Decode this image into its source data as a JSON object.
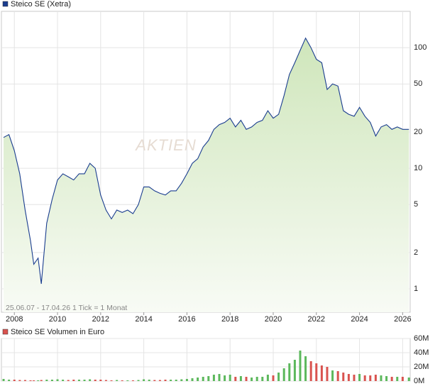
{
  "chart_data": [
    {
      "type": "line",
      "legend": "Steico SE (Xetra)",
      "log_scale": true,
      "grid": true,
      "annotation": "25.06.07 - 17.04.26   1 Tick = 1 Monat",
      "watermark": "AKTIEN",
      "x": [
        2007.5,
        2007.75,
        2008.0,
        2008.25,
        2008.5,
        2008.75,
        2008.9,
        2009.1,
        2009.25,
        2009.5,
        2009.75,
        2010.0,
        2010.25,
        2010.5,
        2010.75,
        2011.0,
        2011.25,
        2011.5,
        2011.75,
        2012.0,
        2012.25,
        2012.5,
        2012.75,
        2013.0,
        2013.25,
        2013.5,
        2013.75,
        2014.0,
        2014.25,
        2014.5,
        2014.75,
        2015.0,
        2015.25,
        2015.5,
        2015.75,
        2016.0,
        2016.25,
        2016.5,
        2016.75,
        2017.0,
        2017.25,
        2017.5,
        2017.75,
        2018.0,
        2018.25,
        2018.5,
        2018.75,
        2019.0,
        2019.25,
        2019.5,
        2019.75,
        2020.0,
        2020.25,
        2020.5,
        2020.75,
        2021.0,
        2021.25,
        2021.5,
        2021.75,
        2022.0,
        2022.25,
        2022.5,
        2022.75,
        2023.0,
        2023.25,
        2023.5,
        2023.75,
        2024.0,
        2024.25,
        2024.5,
        2024.75,
        2025.0,
        2025.25,
        2025.5,
        2025.75,
        2026.0,
        2026.29
      ],
      "series": [
        {
          "name": "Steico SE (Xetra)",
          "color": "#1a3d8f",
          "values": [
            18,
            19,
            14,
            9,
            4.5,
            2.5,
            1.6,
            1.8,
            1.1,
            3.5,
            5.5,
            8,
            9,
            8.5,
            8,
            9,
            9,
            11,
            10,
            6,
            4.5,
            3.8,
            4.5,
            4.3,
            4.5,
            4.2,
            5,
            7,
            7,
            6.5,
            6.2,
            6,
            6.5,
            6.5,
            7.5,
            9,
            11,
            12,
            15,
            17,
            21,
            23,
            24,
            26,
            22,
            25,
            21,
            22,
            24,
            25,
            30,
            26,
            28,
            40,
            60,
            75,
            95,
            120,
            100,
            80,
            75,
            45,
            50,
            48,
            30,
            28,
            27,
            32,
            27,
            24,
            18.5,
            22,
            23,
            21,
            22,
            21,
            21
          ]
        }
      ],
      "fill_color": "#d7ebc6",
      "xlim": [
        2007.4,
        2026.35
      ],
      "xticks": [
        2008,
        2010,
        2012,
        2014,
        2016,
        2018,
        2020,
        2022,
        2024,
        2026
      ],
      "ylim": [
        0.64,
        200
      ],
      "yticks": [
        1,
        2,
        5,
        10,
        20,
        50,
        100
      ]
    },
    {
      "type": "bar",
      "legend": "Steico SE Volumen in Euro",
      "grid": true,
      "up_color": "#5cb85c",
      "down_color": "#d9534f",
      "legend_color": "#d9534f",
      "x": [
        2007.5,
        2007.75,
        2008.0,
        2008.25,
        2008.5,
        2008.75,
        2008.9,
        2009.1,
        2009.25,
        2009.5,
        2009.75,
        2010.0,
        2010.25,
        2010.5,
        2010.75,
        2011.0,
        2011.25,
        2011.5,
        2011.75,
        2012.0,
        2012.25,
        2012.5,
        2012.75,
        2013.0,
        2013.25,
        2013.5,
        2013.75,
        2014.0,
        2014.25,
        2014.5,
        2014.75,
        2015.0,
        2015.25,
        2015.5,
        2015.75,
        2016.0,
        2016.25,
        2016.5,
        2016.75,
        2017.0,
        2017.25,
        2017.5,
        2017.75,
        2018.0,
        2018.25,
        2018.5,
        2018.75,
        2019.0,
        2019.25,
        2019.5,
        2019.75,
        2020.0,
        2020.25,
        2020.5,
        2020.75,
        2021.0,
        2021.25,
        2021.5,
        2021.75,
        2022.0,
        2022.25,
        2022.5,
        2022.75,
        2023.0,
        2023.25,
        2023.5,
        2023.75,
        2024.0,
        2024.25,
        2024.5,
        2024.75,
        2025.0,
        2025.25,
        2025.5,
        2025.75,
        2026.0,
        2026.29
      ],
      "values": [
        3000000,
        2000000,
        2000000,
        1500000,
        1500000,
        1000000,
        1000000,
        1000000,
        1500000,
        2000000,
        2000000,
        2500000,
        2000000,
        1500000,
        2000000,
        2000000,
        2000000,
        2500000,
        2000000,
        2000000,
        1500000,
        1000000,
        1500000,
        1000000,
        1000000,
        1000000,
        1500000,
        2500000,
        2000000,
        1500000,
        1500000,
        2000000,
        2000000,
        2000000,
        2500000,
        3000000,
        4000000,
        5000000,
        6000000,
        7000000,
        9000000,
        10000000,
        8000000,
        9000000,
        6000000,
        7000000,
        6000000,
        5000000,
        6000000,
        6000000,
        9000000,
        8000000,
        12000000,
        18000000,
        25000000,
        30000000,
        43000000,
        35000000,
        28000000,
        25000000,
        22000000,
        20000000,
        15000000,
        14000000,
        12000000,
        10000000,
        9000000,
        10000000,
        8000000,
        8000000,
        9000000,
        8000000,
        7000000,
        6000000,
        6000000,
        6000000,
        5000000
      ],
      "ylim": [
        0,
        60000000
      ],
      "yticks": [
        {
          "value": 0,
          "label": "0M"
        },
        {
          "value": 20000000,
          "label": "20M"
        },
        {
          "value": 40000000,
          "label": "40M"
        },
        {
          "value": 60000000,
          "label": "60M"
        }
      ]
    }
  ]
}
